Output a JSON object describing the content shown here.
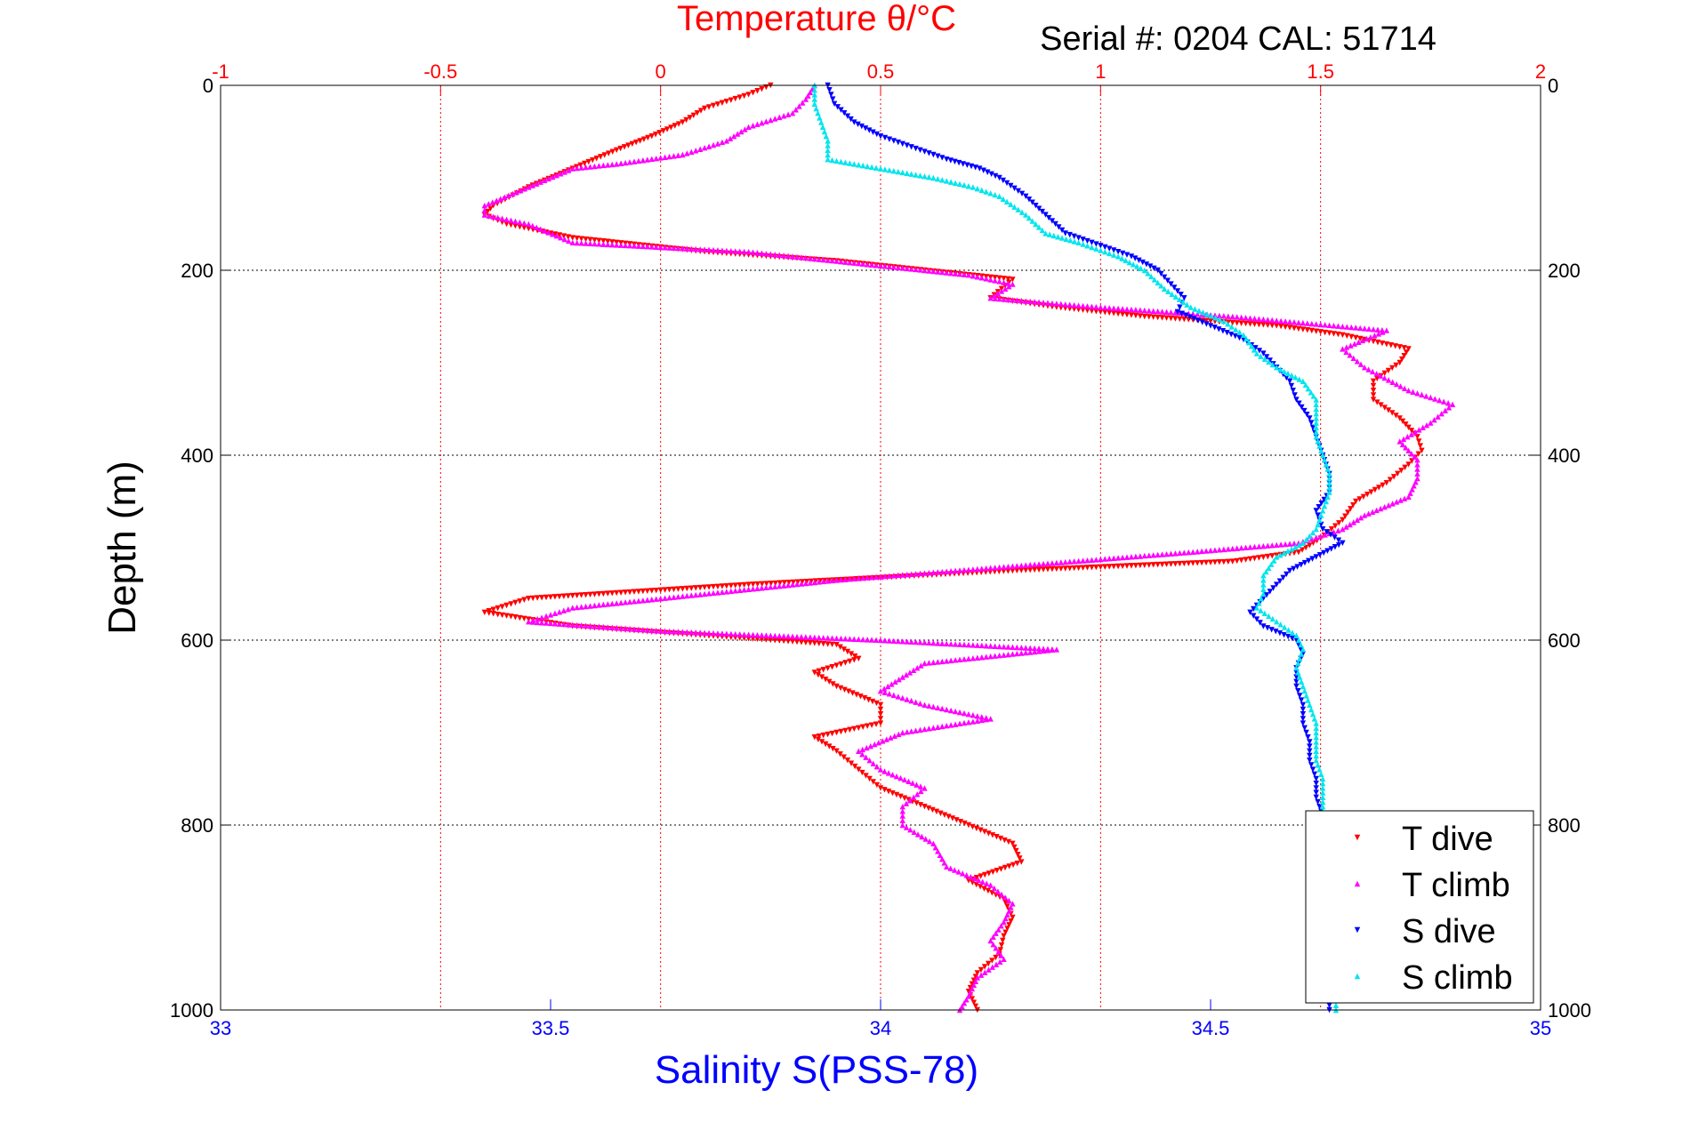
{
  "chart_data": {
    "type": "scatter",
    "title": "Temperature θ/°C",
    "subtitle": "Serial #: 0204   CAL: 51714",
    "xlabel": "Salinity S(PSS-78)",
    "ylabel": "Depth (m)",
    "colors": {
      "temp_axis": "#ff0000",
      "sal_axis": "#0000ff",
      "frame": "#000000",
      "grid": "#000000"
    },
    "depth_ticks": [
      "0",
      "200",
      "400",
      "600",
      "800",
      "1000"
    ],
    "temp_ticks": [
      "-1",
      "-0.5",
      "0",
      "0.5",
      "1",
      "1.5",
      "2"
    ],
    "sal_ticks": [
      "33",
      "33.5",
      "34",
      "34.5",
      "35"
    ],
    "xlim_temperature": [
      -1,
      2
    ],
    "xlim_salinity": [
      33,
      35
    ],
    "ylim_depth": [
      0,
      1000
    ],
    "y_reversed": true,
    "grid": true,
    "legend_position": "bottom-right",
    "series": [
      {
        "name": "T dive",
        "color": "#ff0000",
        "marker": "triangle-down",
        "axis": "temperature",
        "points": [
          [
            0.25,
            0
          ],
          [
            0.2,
            10
          ],
          [
            0.1,
            25
          ],
          [
            0.05,
            40
          ],
          [
            -0.02,
            55
          ],
          [
            -0.1,
            70
          ],
          [
            -0.2,
            90
          ],
          [
            -0.3,
            110
          ],
          [
            -0.38,
            130
          ],
          [
            -0.4,
            140
          ],
          [
            -0.35,
            150
          ],
          [
            -0.2,
            165
          ],
          [
            0.1,
            180
          ],
          [
            0.4,
            190
          ],
          [
            0.6,
            200
          ],
          [
            0.8,
            210
          ],
          [
            0.75,
            230
          ],
          [
            0.9,
            240
          ],
          [
            1.1,
            250
          ],
          [
            1.4,
            260
          ],
          [
            1.55,
            270
          ],
          [
            1.7,
            285
          ],
          [
            1.68,
            300
          ],
          [
            1.62,
            320
          ],
          [
            1.62,
            340
          ],
          [
            1.68,
            360
          ],
          [
            1.72,
            380
          ],
          [
            1.73,
            395
          ],
          [
            1.7,
            410
          ],
          [
            1.65,
            430
          ],
          [
            1.58,
            450
          ],
          [
            1.55,
            470
          ],
          [
            1.5,
            490
          ],
          [
            1.45,
            505
          ],
          [
            1.3,
            515
          ],
          [
            0.8,
            525
          ],
          [
            0.2,
            540
          ],
          [
            -0.3,
            555
          ],
          [
            -0.4,
            570
          ],
          [
            -0.2,
            585
          ],
          [
            0.1,
            595
          ],
          [
            0.4,
            605
          ],
          [
            0.45,
            620
          ],
          [
            0.35,
            635
          ],
          [
            0.4,
            650
          ],
          [
            0.5,
            670
          ],
          [
            0.5,
            690
          ],
          [
            0.35,
            705
          ],
          [
            0.4,
            720
          ],
          [
            0.45,
            740
          ],
          [
            0.5,
            760
          ],
          [
            0.6,
            780
          ],
          [
            0.7,
            800
          ],
          [
            0.8,
            820
          ],
          [
            0.82,
            840
          ],
          [
            0.7,
            860
          ],
          [
            0.78,
            880
          ],
          [
            0.8,
            900
          ],
          [
            0.78,
            920
          ],
          [
            0.77,
            940
          ],
          [
            0.72,
            960
          ],
          [
            0.7,
            980
          ],
          [
            0.72,
            1000
          ]
        ]
      },
      {
        "name": "T climb",
        "color": "#ff00ff",
        "marker": "triangle-up",
        "axis": "temperature",
        "points": [
          [
            0.35,
            0
          ],
          [
            0.33,
            15
          ],
          [
            0.3,
            30
          ],
          [
            0.2,
            45
          ],
          [
            0.15,
            60
          ],
          [
            0.05,
            75
          ],
          [
            -0.1,
            85
          ],
          [
            -0.2,
            90
          ],
          [
            -0.3,
            110
          ],
          [
            -0.4,
            130
          ],
          [
            -0.4,
            140
          ],
          [
            -0.3,
            150
          ],
          [
            -0.2,
            170
          ],
          [
            0.2,
            180
          ],
          [
            0.5,
            195
          ],
          [
            0.7,
            205
          ],
          [
            0.8,
            215
          ],
          [
            0.75,
            230
          ],
          [
            1.0,
            240
          ],
          [
            1.3,
            250
          ],
          [
            1.65,
            265
          ],
          [
            1.55,
            285
          ],
          [
            1.6,
            305
          ],
          [
            1.7,
            330
          ],
          [
            1.8,
            345
          ],
          [
            1.75,
            365
          ],
          [
            1.68,
            385
          ],
          [
            1.72,
            405
          ],
          [
            1.72,
            425
          ],
          [
            1.7,
            445
          ],
          [
            1.6,
            465
          ],
          [
            1.55,
            480
          ],
          [
            1.45,
            495
          ],
          [
            1.2,
            505
          ],
          [
            0.8,
            520
          ],
          [
            0.4,
            535
          ],
          [
            0.1,
            550
          ],
          [
            -0.2,
            565
          ],
          [
            -0.3,
            580
          ],
          [
            0.0,
            590
          ],
          [
            0.5,
            600
          ],
          [
            0.9,
            610
          ],
          [
            0.6,
            625
          ],
          [
            0.55,
            640
          ],
          [
            0.5,
            655
          ],
          [
            0.6,
            670
          ],
          [
            0.75,
            685
          ],
          [
            0.55,
            700
          ],
          [
            0.45,
            720
          ],
          [
            0.5,
            740
          ],
          [
            0.6,
            760
          ],
          [
            0.55,
            780
          ],
          [
            0.55,
            800
          ],
          [
            0.62,
            820
          ],
          [
            0.65,
            845
          ],
          [
            0.75,
            865
          ],
          [
            0.8,
            885
          ],
          [
            0.78,
            905
          ],
          [
            0.75,
            925
          ],
          [
            0.78,
            945
          ],
          [
            0.72,
            965
          ],
          [
            0.7,
            985
          ],
          [
            0.68,
            1000
          ]
        ]
      },
      {
        "name": "S dive",
        "color": "#0000ff",
        "marker": "triangle-down",
        "axis": "salinity",
        "points": [
          [
            33.92,
            0
          ],
          [
            33.93,
            20
          ],
          [
            33.96,
            40
          ],
          [
            34.0,
            55
          ],
          [
            34.06,
            70
          ],
          [
            34.1,
            80
          ],
          [
            34.15,
            90
          ],
          [
            34.18,
            100
          ],
          [
            34.22,
            120
          ],
          [
            34.25,
            140
          ],
          [
            34.28,
            160
          ],
          [
            34.34,
            175
          ],
          [
            34.38,
            185
          ],
          [
            34.42,
            200
          ],
          [
            34.44,
            215
          ],
          [
            34.46,
            230
          ],
          [
            34.45,
            245
          ],
          [
            34.5,
            260
          ],
          [
            34.55,
            275
          ],
          [
            34.58,
            290
          ],
          [
            34.6,
            305
          ],
          [
            34.62,
            320
          ],
          [
            34.63,
            340
          ],
          [
            34.65,
            360
          ],
          [
            34.66,
            380
          ],
          [
            34.67,
            400
          ],
          [
            34.68,
            420
          ],
          [
            34.68,
            440
          ],
          [
            34.66,
            460
          ],
          [
            34.67,
            480
          ],
          [
            34.7,
            495
          ],
          [
            34.66,
            510
          ],
          [
            34.62,
            525
          ],
          [
            34.6,
            540
          ],
          [
            34.58,
            555
          ],
          [
            34.56,
            570
          ],
          [
            34.58,
            585
          ],
          [
            34.63,
            600
          ],
          [
            34.64,
            615
          ],
          [
            34.63,
            630
          ],
          [
            34.63,
            650
          ],
          [
            34.64,
            670
          ],
          [
            34.64,
            690
          ],
          [
            34.65,
            710
          ],
          [
            34.65,
            730
          ],
          [
            34.66,
            750
          ],
          [
            34.66,
            770
          ],
          [
            34.67,
            790
          ],
          [
            34.67,
            820
          ],
          [
            34.67,
            850
          ],
          [
            34.68,
            880
          ],
          [
            34.68,
            910
          ],
          [
            34.68,
            940
          ],
          [
            34.68,
            970
          ],
          [
            34.68,
            1000
          ]
        ]
      },
      {
        "name": "S climb",
        "color": "#00e5ee",
        "marker": "triangle-up",
        "axis": "salinity",
        "points": [
          [
            33.9,
            0
          ],
          [
            33.9,
            20
          ],
          [
            33.91,
            40
          ],
          [
            33.92,
            60
          ],
          [
            33.92,
            80
          ],
          [
            34.0,
            90
          ],
          [
            34.08,
            100
          ],
          [
            34.14,
            110
          ],
          [
            34.18,
            120
          ],
          [
            34.22,
            140
          ],
          [
            34.25,
            160
          ],
          [
            34.3,
            170
          ],
          [
            34.36,
            185
          ],
          [
            34.4,
            200
          ],
          [
            34.43,
            220
          ],
          [
            34.47,
            240
          ],
          [
            34.52,
            255
          ],
          [
            34.55,
            270
          ],
          [
            34.57,
            290
          ],
          [
            34.6,
            305
          ],
          [
            34.64,
            320
          ],
          [
            34.66,
            340
          ],
          [
            34.66,
            360
          ],
          [
            34.66,
            380
          ],
          [
            34.67,
            400
          ],
          [
            34.68,
            420
          ],
          [
            34.68,
            440
          ],
          [
            34.67,
            460
          ],
          [
            34.66,
            480
          ],
          [
            34.64,
            495
          ],
          [
            34.6,
            510
          ],
          [
            34.58,
            530
          ],
          [
            34.58,
            550
          ],
          [
            34.57,
            565
          ],
          [
            34.6,
            580
          ],
          [
            34.63,
            595
          ],
          [
            34.64,
            610
          ],
          [
            34.63,
            630
          ],
          [
            34.64,
            650
          ],
          [
            34.65,
            670
          ],
          [
            34.66,
            690
          ],
          [
            34.66,
            710
          ],
          [
            34.66,
            730
          ],
          [
            34.67,
            750
          ],
          [
            34.67,
            770
          ],
          [
            34.67,
            790
          ],
          [
            34.67,
            810
          ],
          [
            34.68,
            840
          ],
          [
            34.68,
            870
          ],
          [
            34.68,
            900
          ],
          [
            34.69,
            930
          ],
          [
            34.69,
            960
          ],
          [
            34.69,
            1000
          ]
        ]
      }
    ]
  }
}
